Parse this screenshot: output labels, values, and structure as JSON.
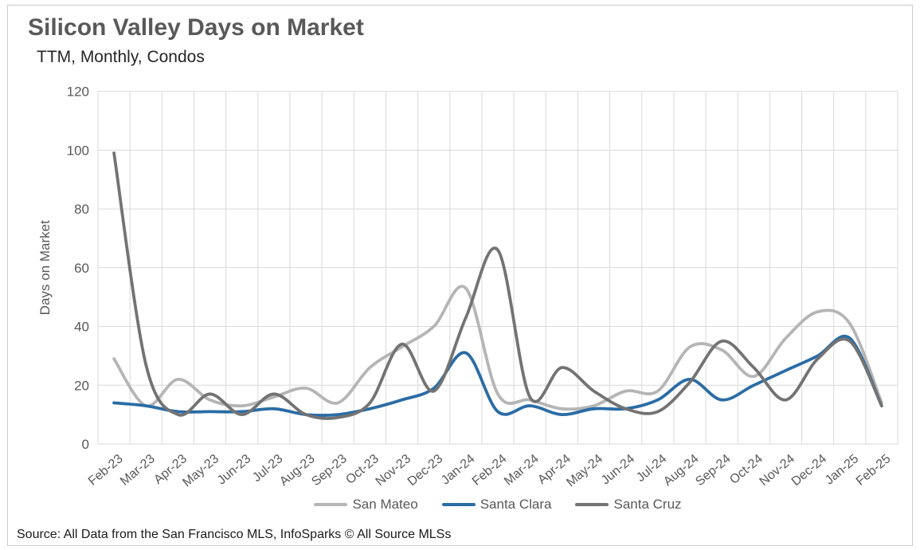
{
  "header": {
    "title": "Silicon Valley Days on Market",
    "subtitle": "TTM, Monthly, Condos"
  },
  "chart_data": {
    "type": "line",
    "title": "Silicon Valley Days on Market",
    "subtitle": "TTM, Monthly, Condos",
    "xlabel": "",
    "ylabel": "Days on Market",
    "ylim": [
      0,
      120
    ],
    "ytick_interval": 20,
    "yticks": [
      0,
      20,
      40,
      60,
      80,
      100,
      120
    ],
    "grid": true,
    "smoothed_lines": true,
    "legend_position": "bottom",
    "gridline_color": "#d9d9d9",
    "axis_text_color": "#595959",
    "categories": [
      "Feb-23",
      "Mar-23",
      "Apr-23",
      "May-23",
      "Jun-23",
      "Jul-23",
      "Aug-23",
      "Sep-23",
      "Oct-23",
      "Nov-23",
      "Dec-23",
      "Jan-24",
      "Feb-24",
      "Mar-24",
      "Apr-24",
      "May-24",
      "Jun-24",
      "Jul-24",
      "Aug-24",
      "Sep-24",
      "Oct-24",
      "Nov-24",
      "Dec-24",
      "Jan-25",
      "Feb-25"
    ],
    "series": [
      {
        "name": "San Mateo",
        "color": "#b5b5b5",
        "values": [
          29,
          13,
          22,
          15,
          13,
          16,
          19,
          14,
          26,
          33,
          40,
          53,
          17,
          15,
          12,
          13,
          18,
          18,
          33,
          32,
          23,
          36,
          45,
          41,
          14
        ]
      },
      {
        "name": "Santa Clara",
        "color": "#2a6ca5",
        "values": [
          14,
          13,
          11,
          11,
          11,
          12,
          10,
          10,
          12,
          15,
          19,
          31,
          11,
          13,
          10,
          12,
          12,
          15,
          22,
          15,
          20,
          25,
          30,
          36,
          13
        ]
      },
      {
        "name": "Santa Cruz",
        "color": "#737373",
        "values": [
          99,
          27,
          10,
          17,
          10,
          17,
          10,
          9,
          14,
          34,
          18,
          43,
          66,
          16,
          26,
          18,
          12,
          11,
          21,
          35,
          26,
          15,
          29,
          35,
          13
        ]
      }
    ]
  },
  "footer": {
    "source": "Source: All Data from the San Francisco MLS, InfoSparks © All Source MLSs"
  }
}
